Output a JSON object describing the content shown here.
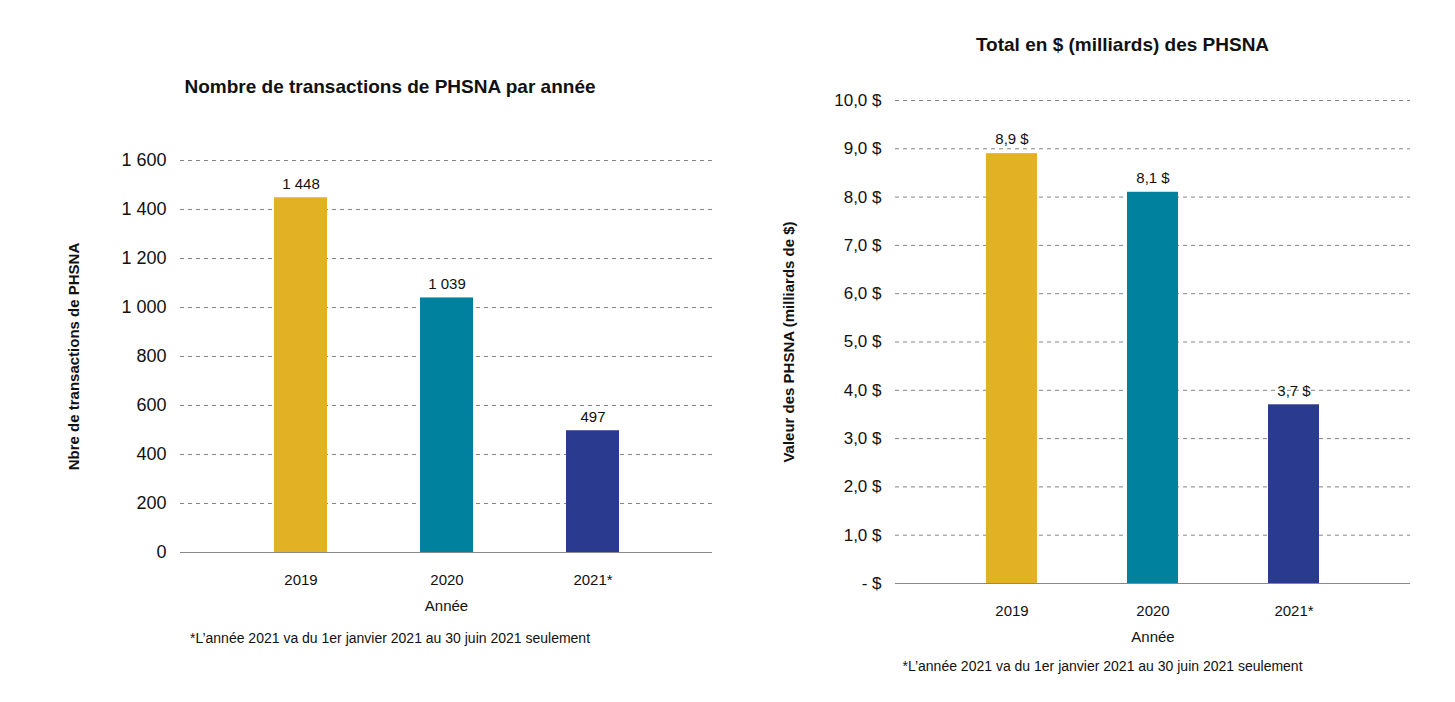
{
  "chart_data": [
    {
      "type": "bar",
      "title": "Nombre de transactions de PHSNA par année",
      "xlabel": "Année",
      "ylabel": "Nbre de transactions de PHSNA",
      "caption": "*L’année  2021 va du 1er janvier 2021 au 30 juin 2021 seulement",
      "categories": [
        "2019",
        "2020",
        "2021*"
      ],
      "values": [
        1448,
        1039,
        497
      ],
      "value_labels": [
        "1 448",
        "1 039",
        "497"
      ],
      "colors": [
        "#e3b224",
        "#00829e",
        "#2a3a8f"
      ],
      "ylim": [
        0,
        1600
      ],
      "yticks": [
        0,
        200,
        400,
        600,
        800,
        {
          "value": 1000,
          "label": "1 000"
        },
        {
          "value": 1200,
          "label": "1 200"
        },
        {
          "value": 1400,
          "label": "1 400"
        },
        {
          "value": 1600,
          "label": "1 600"
        }
      ],
      "grid": true,
      "data_labels": true
    },
    {
      "type": "bar",
      "title": "Total en $ (milliards) des PHSNA",
      "xlabel": "Année",
      "ylabel": "Valeur des PHSNA (milliards de $)",
      "caption": "*L’année  2021 va du 1er janvier 2021 au 30 juin 2021 seulement",
      "categories": [
        "2019",
        "2020",
        "2021*"
      ],
      "values": [
        8.9,
        8.1,
        3.7
      ],
      "value_labels": [
        "8,9 $",
        "8,1 $",
        "3,7 $"
      ],
      "colors": [
        "#e3b224",
        "#00829e",
        "#2a3a8f"
      ],
      "ylim": [
        0,
        10
      ],
      "yticks": [
        {
          "value": 0,
          "label": "- $"
        },
        {
          "value": 1,
          "label": "1,0 $"
        },
        {
          "value": 2,
          "label": "2,0 $"
        },
        {
          "value": 3,
          "label": "3,0 $"
        },
        {
          "value": 4,
          "label": "4,0 $"
        },
        {
          "value": 5,
          "label": "5,0 $"
        },
        {
          "value": 6,
          "label": "6,0 $"
        },
        {
          "value": 7,
          "label": "7,0 $"
        },
        {
          "value": 8,
          "label": "8,0 $"
        },
        {
          "value": 9,
          "label": "9,0 $"
        },
        {
          "value": 10,
          "label": "10,0 $"
        }
      ],
      "grid": true,
      "data_labels": true
    }
  ]
}
